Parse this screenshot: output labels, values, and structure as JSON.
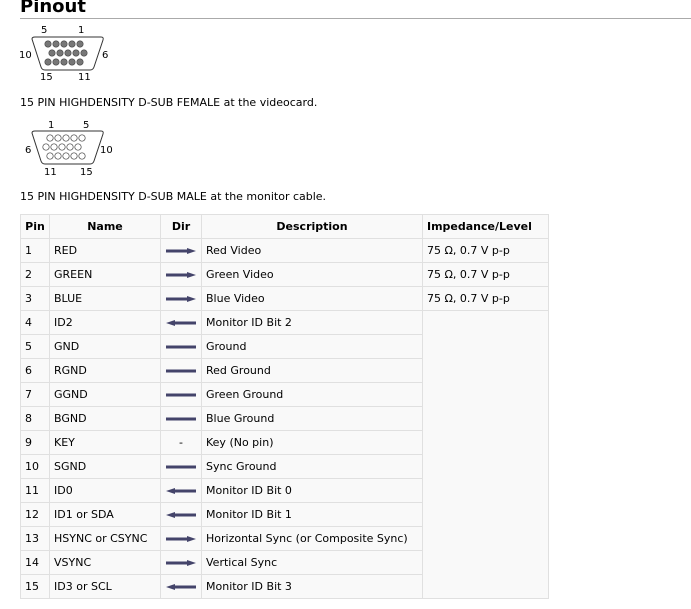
{
  "title": "Pinout",
  "female": {
    "labels": {
      "top_left": "5",
      "top_right": "1",
      "left": "10",
      "right": "6",
      "bottom_left": "15",
      "bottom_right": "11"
    },
    "caption": "15 PIN HIGHDENSITY D-SUB FEMALE at the videocard."
  },
  "male": {
    "labels": {
      "top_left": "1",
      "top_right": "5",
      "left": "6",
      "right": "10",
      "bottom_left": "11",
      "bottom_right": "15"
    },
    "caption": "15 PIN HIGHDENSITY D-SUB MALE at the monitor cable."
  },
  "table": {
    "headers": [
      "Pin",
      "Name",
      "Dir",
      "Description",
      "Impedance/Level"
    ],
    "rows": [
      {
        "pin": "1",
        "name": "RED",
        "dir": "out",
        "desc": "Red Video",
        "imp": "75 Ω, 0.7 V p-p"
      },
      {
        "pin": "2",
        "name": "GREEN",
        "dir": "out",
        "desc": "Green Video",
        "imp": "75 Ω, 0.7 V p-p"
      },
      {
        "pin": "3",
        "name": "BLUE",
        "dir": "out",
        "desc": "Blue Video",
        "imp": "75 Ω, 0.7 V p-p"
      },
      {
        "pin": "4",
        "name": "ID2",
        "dir": "in",
        "desc": "Monitor ID Bit 2"
      },
      {
        "pin": "5",
        "name": "GND",
        "dir": "both",
        "desc": "Ground"
      },
      {
        "pin": "6",
        "name": "RGND",
        "dir": "both",
        "desc": "Red Ground"
      },
      {
        "pin": "7",
        "name": "GGND",
        "dir": "both",
        "desc": "Green Ground"
      },
      {
        "pin": "8",
        "name": "BGND",
        "dir": "both",
        "desc": "Blue Ground"
      },
      {
        "pin": "9",
        "name": "KEY",
        "dir": "-",
        "desc": "Key (No pin)"
      },
      {
        "pin": "10",
        "name": "SGND",
        "dir": "both",
        "desc": "Sync Ground"
      },
      {
        "pin": "11",
        "name": "ID0",
        "dir": "in",
        "desc": "Monitor ID Bit 0"
      },
      {
        "pin": "12",
        "name": "ID1 or SDA",
        "dir": "in",
        "desc": "Monitor ID Bit 1"
      },
      {
        "pin": "13",
        "name": "HSYNC or CSYNC",
        "dir": "out",
        "desc": "Horizontal Sync (or Composite Sync)"
      },
      {
        "pin": "14",
        "name": "VSYNC",
        "dir": "out",
        "desc": "Vertical Sync"
      },
      {
        "pin": "15",
        "name": "ID3 or SCL",
        "dir": "in",
        "desc": "Monitor ID Bit 3"
      }
    ]
  },
  "colors": {
    "arrow": "#44446a",
    "pin_fill": "#777777"
  }
}
